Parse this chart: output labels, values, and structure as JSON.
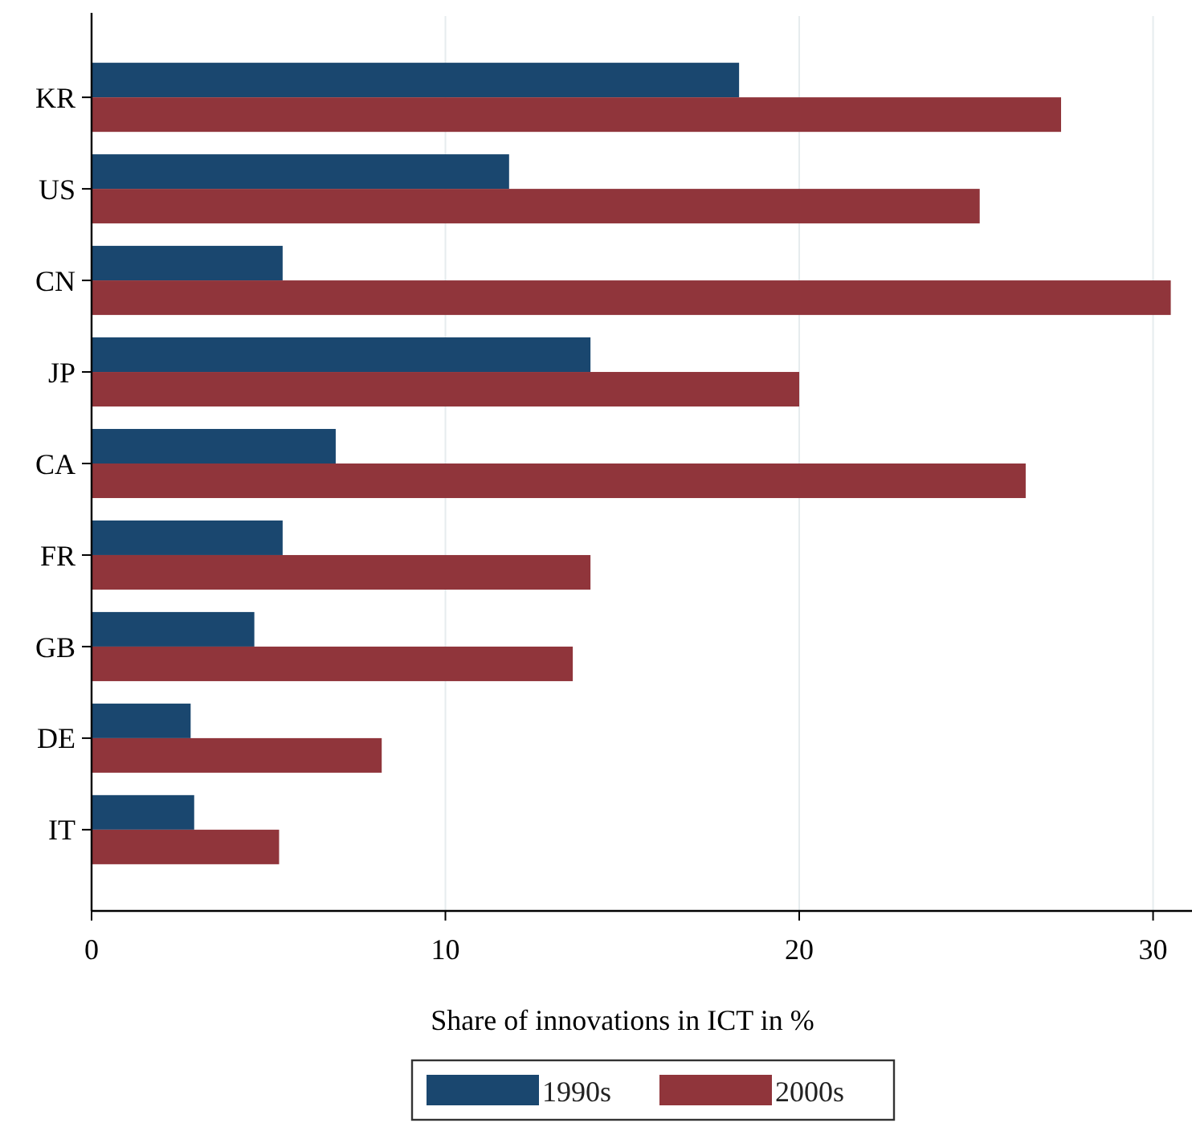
{
  "chart_data": {
    "type": "bar",
    "orientation": "horizontal",
    "xlabel": "Share of innovations in ICT in %",
    "categories": [
      "KR",
      "US",
      "CN",
      "JP",
      "CA",
      "FR",
      "GB",
      "DE",
      "IT"
    ],
    "series": [
      {
        "name": "1990s",
        "color": "#1a476f",
        "values": [
          18.3,
          11.8,
          5.4,
          14.1,
          6.9,
          5.4,
          4.6,
          2.8,
          2.9
        ]
      },
      {
        "name": "2000s",
        "color": "#90353b",
        "values": [
          27.4,
          25.1,
          30.5,
          20.0,
          26.4,
          14.1,
          13.6,
          8.2,
          5.3
        ]
      }
    ],
    "xlim": [
      0,
      31.1
    ],
    "xticks": [
      0,
      10,
      20,
      30
    ],
    "grid": "x",
    "legend": "bottom"
  }
}
